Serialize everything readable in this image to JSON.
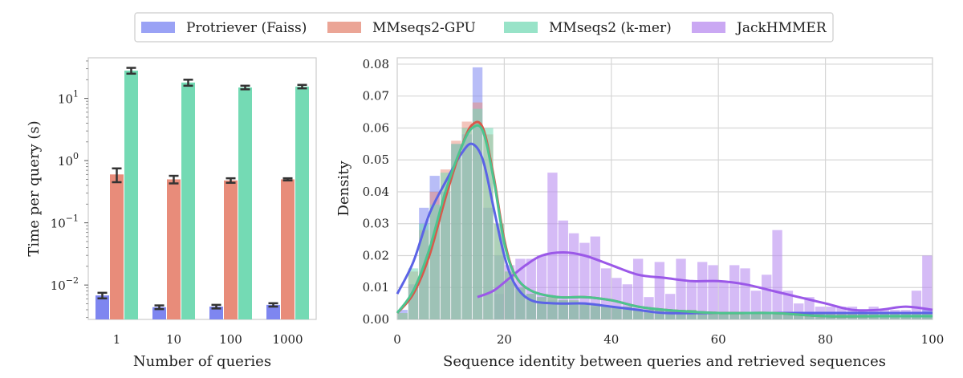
{
  "colors": {
    "protriever": "#7e86f0",
    "mmseqs_gpu": "#e88c7a",
    "mmseqs_kmer": "#74dab4",
    "jackhmmer": "#b98ef0",
    "frame": "#cccccc",
    "grid": "#d6d6d6",
    "error": "#333333"
  },
  "legend": [
    {
      "label": "Protriever (Faiss)",
      "color": "#9aa2f5"
    },
    {
      "label": "MMseqs2-GPU",
      "color": "#eba596"
    },
    {
      "label": "MMseqs2 (k-mer)",
      "color": "#98e3c8"
    },
    {
      "label": "JackHMMER",
      "color": "#caa8f3"
    }
  ],
  "chart_data": [
    {
      "type": "bar",
      "scale": "log",
      "title": "",
      "xlabel": "Number of queries",
      "ylabel": "Time per query (s)",
      "categories": [
        "1",
        "10",
        "100",
        "1000"
      ],
      "ylim": [
        0.0028,
        45
      ],
      "yticks": [
        {
          "value": 0.01,
          "base": "10",
          "exp": "−2"
        },
        {
          "value": 0.1,
          "base": "10",
          "exp": "−1"
        },
        {
          "value": 1,
          "base": "10",
          "exp": "0"
        },
        {
          "value": 10,
          "base": "10",
          "exp": "1"
        }
      ],
      "series": [
        {
          "name": "Protriever (Faiss)",
          "values": [
            0.0068,
            0.0044,
            0.0045,
            0.0048
          ],
          "errors": [
            0.0007,
            0.0003,
            0.0003,
            0.0003
          ]
        },
        {
          "name": "MMseqs2-GPU",
          "values": [
            0.6,
            0.5,
            0.48,
            0.5
          ],
          "errors": [
            0.15,
            0.07,
            0.04,
            0.02
          ]
        },
        {
          "name": "MMseqs2 (k-mer)",
          "values": [
            28,
            18,
            15,
            15.5
          ],
          "errors": [
            3,
            2,
            1,
            1
          ]
        }
      ]
    },
    {
      "type": "histogram",
      "title": "",
      "xlabel": "Sequence identity between queries and retrieved sequences",
      "ylabel": "Density",
      "xlim": [
        0,
        100
      ],
      "ylim": [
        0,
        0.082
      ],
      "xticks": [
        0,
        20,
        40,
        60,
        80,
        100
      ],
      "yticks": [
        0.0,
        0.01,
        0.02,
        0.03,
        0.04,
        0.05,
        0.06,
        0.07,
        0.08
      ],
      "ytick_labels": [
        "0.00",
        "0.01",
        "0.02",
        "0.03",
        "0.04",
        "0.05",
        "0.06",
        "0.07",
        "0.08"
      ],
      "bin_width": 2,
      "bin_edges_start": 0,
      "hist_series": [
        {
          "name": "Protriever (Faiss)",
          "densities": [
            0.003,
            0.011,
            0.035,
            0.045,
            0.04,
            0.055,
            0.058,
            0.079,
            0.035,
            0.02,
            0.012,
            0.01,
            0.008,
            0.007,
            0.006,
            0.006,
            0.005,
            0.005,
            0.004,
            0.004,
            0.004,
            0.004,
            0.003,
            0.003,
            0.003,
            0.003,
            0.003,
            0.003,
            0.002,
            0.002,
            0.002,
            0.002,
            0.002,
            0.002,
            0.002,
            0.002,
            0.002,
            0.002,
            0.002,
            0.002,
            0.002,
            0.002,
            0.002,
            0.002,
            0.002,
            0.002,
            0.002,
            0.002,
            0.002,
            0.003
          ]
        },
        {
          "name": "MMseqs2-GPU",
          "densities": [
            0.002,
            0.015,
            0.028,
            0.04,
            0.047,
            0.056,
            0.062,
            0.068,
            0.058,
            0.03,
            0.015,
            0.01,
            0.008,
            0.007,
            0.007,
            0.006,
            0.006,
            0.005,
            0.005,
            0.004,
            0.004,
            0.004,
            0.003,
            0.003,
            0.003,
            0.003,
            0.003,
            0.003,
            0.002,
            0.002,
            0.002,
            0.002,
            0.002,
            0.002,
            0.002,
            0.002,
            0.002,
            0.002,
            0.002,
            0.002,
            0.002,
            0.002,
            0.002,
            0.002,
            0.002,
            0.002,
            0.002,
            0.002,
            0.002,
            0.002
          ]
        },
        {
          "name": "MMseqs2 (k-mer)",
          "densities": [
            0.002,
            0.016,
            0.03,
            0.036,
            0.046,
            0.055,
            0.06,
            0.066,
            0.06,
            0.03,
            0.015,
            0.01,
            0.008,
            0.007,
            0.007,
            0.006,
            0.006,
            0.005,
            0.005,
            0.004,
            0.004,
            0.004,
            0.003,
            0.003,
            0.003,
            0.003,
            0.003,
            0.003,
            0.002,
            0.002,
            0.002,
            0.002,
            0.002,
            0.002,
            0.002,
            0.002,
            0.002,
            0.002,
            0.002,
            0.002,
            0.002,
            0.002,
            0.002,
            0.002,
            0.002,
            0.002,
            0.002,
            0.002,
            0.002,
            0.002
          ]
        },
        {
          "name": "JackHMMER",
          "densities": [
            0,
            0,
            0,
            0,
            0,
            0,
            0,
            0,
            0,
            0.008,
            0.017,
            0.019,
            0.019,
            0.02,
            0.046,
            0.031,
            0.027,
            0.024,
            0.026,
            0.016,
            0.013,
            0.011,
            0.019,
            0.007,
            0.018,
            0.008,
            0.019,
            0.012,
            0.018,
            0.017,
            0.012,
            0.017,
            0.016,
            0.009,
            0.014,
            0.028,
            0.009,
            0.005,
            0.007,
            0.004,
            0.004,
            0.004,
            0.004,
            0.003,
            0.004,
            0.003,
            0.003,
            0.003,
            0.009,
            0.02
          ]
        }
      ],
      "kde": [
        {
          "name": "Protriever (Faiss)",
          "points": [
            [
              0,
              0.008
            ],
            [
              3,
              0.018
            ],
            [
              6,
              0.033
            ],
            [
              9,
              0.043
            ],
            [
              12,
              0.052
            ],
            [
              14,
              0.055
            ],
            [
              16,
              0.05
            ],
            [
              18,
              0.035
            ],
            [
              20,
              0.02
            ],
            [
              22,
              0.011
            ],
            [
              25,
              0.006
            ],
            [
              30,
              0.005
            ],
            [
              35,
              0.005
            ],
            [
              40,
              0.004
            ],
            [
              45,
              0.003
            ],
            [
              50,
              0.002
            ],
            [
              60,
              0.002
            ],
            [
              70,
              0.002
            ],
            [
              80,
              0.002
            ],
            [
              90,
              0.002
            ],
            [
              100,
              0.002
            ]
          ]
        },
        {
          "name": "MMseqs2-GPU",
          "points": [
            [
              0,
              0.002
            ],
            [
              3,
              0.008
            ],
            [
              6,
              0.02
            ],
            [
              9,
              0.038
            ],
            [
              12,
              0.054
            ],
            [
              14,
              0.061
            ],
            [
              16,
              0.06
            ],
            [
              18,
              0.045
            ],
            [
              20,
              0.025
            ],
            [
              22,
              0.014
            ],
            [
              25,
              0.009
            ],
            [
              30,
              0.007
            ],
            [
              35,
              0.007
            ],
            [
              40,
              0.006
            ],
            [
              45,
              0.004
            ],
            [
              50,
              0.003
            ],
            [
              60,
              0.002
            ],
            [
              70,
              0.002
            ],
            [
              80,
              0.001
            ],
            [
              90,
              0.001
            ],
            [
              100,
              0.001
            ]
          ]
        },
        {
          "name": "MMseqs2 (k-mer)",
          "points": [
            [
              0,
              0.002
            ],
            [
              3,
              0.009
            ],
            [
              6,
              0.022
            ],
            [
              9,
              0.04
            ],
            [
              12,
              0.054
            ],
            [
              14,
              0.06
            ],
            [
              16,
              0.059
            ],
            [
              18,
              0.044
            ],
            [
              20,
              0.024
            ],
            [
              22,
              0.014
            ],
            [
              25,
              0.009
            ],
            [
              30,
              0.007
            ],
            [
              35,
              0.007
            ],
            [
              40,
              0.006
            ],
            [
              45,
              0.004
            ],
            [
              50,
              0.003
            ],
            [
              60,
              0.002
            ],
            [
              70,
              0.002
            ],
            [
              80,
              0.001
            ],
            [
              90,
              0.001
            ],
            [
              100,
              0.001
            ]
          ]
        },
        {
          "name": "JackHMMER",
          "points": [
            [
              15,
              0.007
            ],
            [
              18,
              0.009
            ],
            [
              21,
              0.013
            ],
            [
              24,
              0.017
            ],
            [
              27,
              0.02
            ],
            [
              31,
              0.021
            ],
            [
              35,
              0.02
            ],
            [
              40,
              0.017
            ],
            [
              45,
              0.014
            ],
            [
              50,
              0.013
            ],
            [
              55,
              0.012
            ],
            [
              60,
              0.012
            ],
            [
              65,
              0.011
            ],
            [
              70,
              0.009
            ],
            [
              75,
              0.007
            ],
            [
              80,
              0.005
            ],
            [
              85,
              0.003
            ],
            [
              90,
              0.003
            ],
            [
              95,
              0.004
            ],
            [
              100,
              0.003
            ]
          ]
        }
      ]
    }
  ]
}
